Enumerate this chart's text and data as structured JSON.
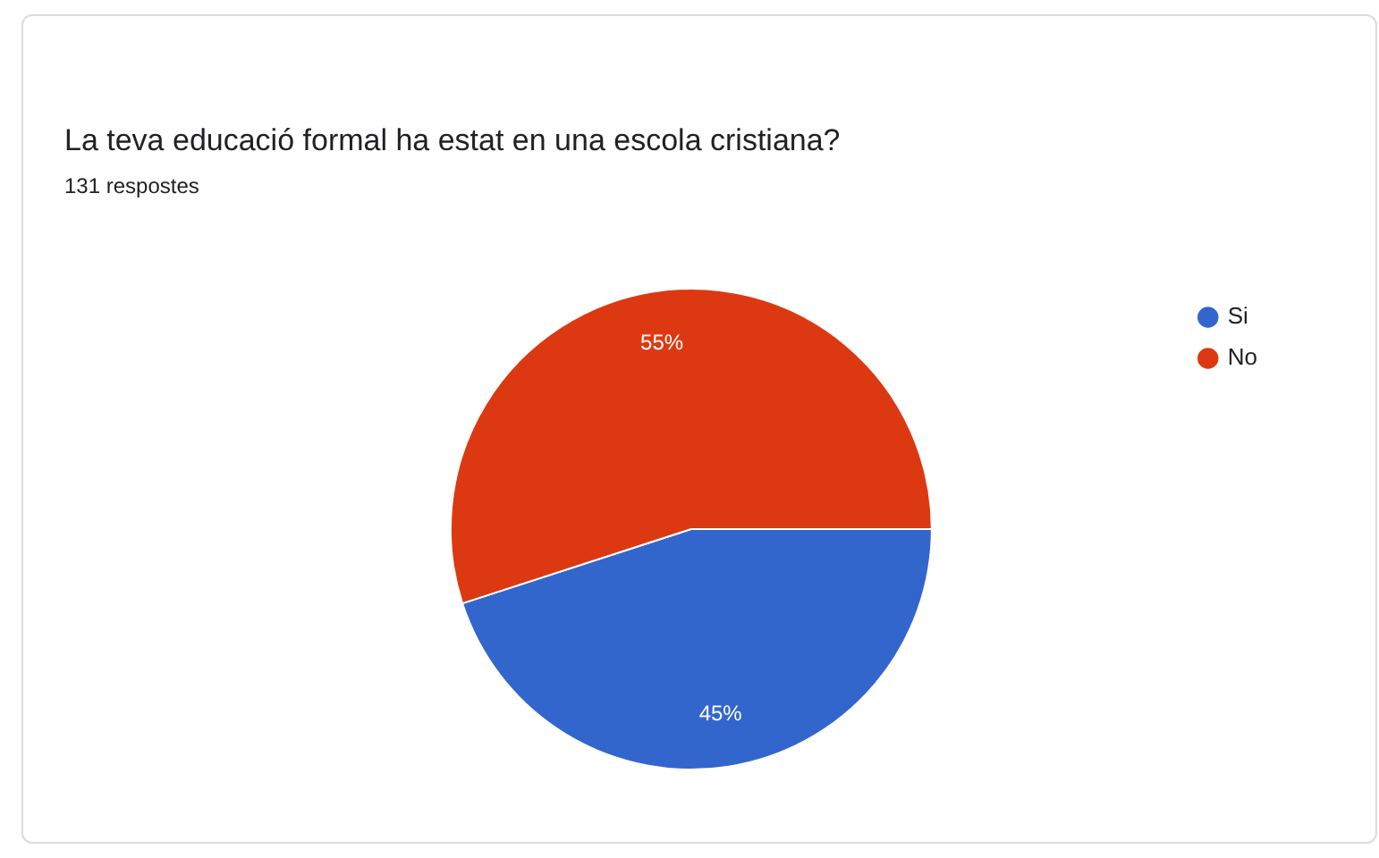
{
  "chart_data": {
    "type": "pie",
    "title": "La teva educació formal ha estat en una escola cristiana?",
    "subtitle": "131 respostes",
    "categories": [
      "Si",
      "No"
    ],
    "values": [
      45,
      55
    ],
    "colors": [
      "#3366cc",
      "#dc3912"
    ],
    "value_labels": [
      "45%",
      "55%"
    ],
    "legend": "top right"
  }
}
